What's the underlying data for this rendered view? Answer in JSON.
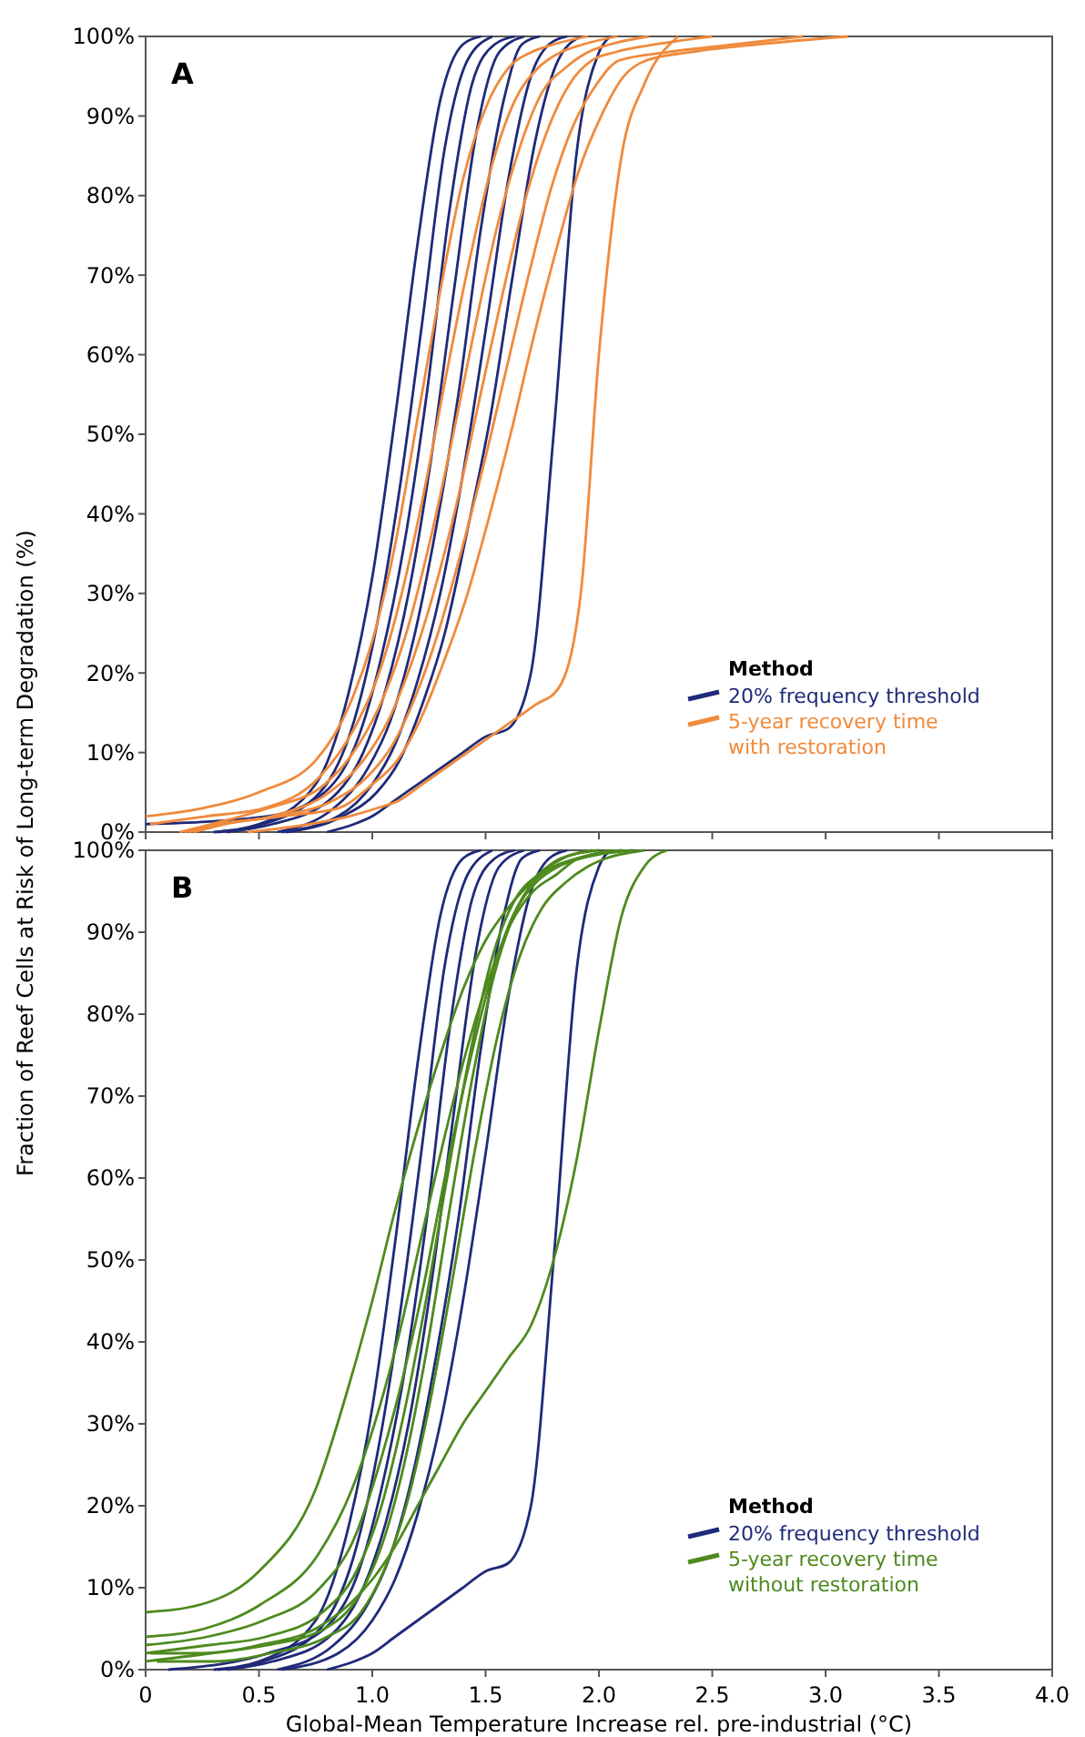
{
  "chart_data": [
    {
      "type": "line",
      "title": "A",
      "ylabel": "Fraction of Reef Cells at Risk of Long-term Degradation (%)",
      "legend_title": "Method",
      "legend": "bottom right",
      "tick_labels": "y",
      "xlim": [
        0,
        4
      ],
      "ylim": [
        0,
        100
      ],
      "xticks": [
        0,
        0.5,
        1,
        1.5,
        2,
        2.5,
        3,
        3.5,
        4
      ],
      "yticks": [
        {
          "value": 0,
          "label": "0%"
        },
        {
          "value": 10,
          "label": "10%"
        },
        {
          "value": 20,
          "label": "20%"
        },
        {
          "value": 30,
          "label": "30%"
        },
        {
          "value": 40,
          "label": "40%"
        },
        {
          "value": 50,
          "label": "50%"
        },
        {
          "value": 60,
          "label": "60%"
        },
        {
          "value": 70,
          "label": "70%"
        },
        {
          "value": 80,
          "label": "80%"
        },
        {
          "value": 90,
          "label": "90%"
        },
        {
          "value": 100,
          "label": "100%"
        }
      ],
      "series": [
        {
          "name": "20% frequency threshold",
          "color": "#1f2a78",
          "x": [
            0.3,
            0.5,
            0.75,
            0.9,
            1.0,
            1.1,
            1.2,
            1.3,
            1.4,
            1.48
          ],
          "values": [
            0,
            1,
            6,
            18,
            32,
            52,
            74,
            92,
            99,
            100
          ]
        },
        {
          "color": "#1f2a78",
          "x": [
            0.32,
            0.52,
            0.77,
            0.92,
            1.02,
            1.12,
            1.22,
            1.32,
            1.42,
            1.53
          ],
          "values": [
            0,
            1,
            5,
            14,
            26,
            43,
            64,
            86,
            97,
            100
          ]
        },
        {
          "color": "#1f2a78",
          "x": [
            0,
            0.54,
            0.79,
            0.94,
            1.04,
            1.14,
            1.24,
            1.34,
            1.44,
            1.54,
            1.63
          ],
          "values": [
            1,
            2,
            5,
            12,
            22,
            36,
            55,
            78,
            94,
            99,
            100
          ]
        },
        {
          "color": "#1f2a78",
          "x": [
            0.36,
            0.56,
            0.81,
            0.96,
            1.06,
            1.16,
            1.26,
            1.36,
            1.46,
            1.56,
            1.67
          ],
          "values": [
            0,
            1,
            4,
            10,
            18,
            30,
            47,
            68,
            88,
            98,
            100
          ]
        },
        {
          "color": "#1f2a78",
          "x": [
            0.58,
            0.83,
            0.98,
            1.08,
            1.18,
            1.28,
            1.38,
            1.48,
            1.58,
            1.66,
            1.74
          ],
          "values": [
            0,
            3,
            8,
            14,
            24,
            38,
            55,
            76,
            92,
            99,
            100
          ]
        },
        {
          "color": "#1f2a78",
          "x": [
            0.6,
            0.85,
            1.0,
            1.1,
            1.2,
            1.3,
            1.4,
            1.5,
            1.6,
            1.7,
            1.78,
            1.86
          ],
          "values": [
            0,
            2,
            6,
            11,
            19,
            30,
            45,
            63,
            82,
            95,
            99,
            100
          ]
        },
        {
          "color": "#1f2a78",
          "x": [
            0.62,
            0.87,
            1.02,
            1.12,
            1.22,
            1.32,
            1.42,
            1.52,
            1.62,
            1.72,
            1.82,
            1.92
          ],
          "values": [
            0,
            2,
            5,
            9,
            16,
            25,
            38,
            52,
            70,
            87,
            97,
            100
          ]
        },
        {
          "color": "#1f2a78",
          "x": [
            0.8,
            0.92,
            1.0,
            1.1,
            1.2,
            1.3,
            1.4,
            1.5,
            1.6,
            1.7,
            1.8,
            1.9,
            2.0,
            2.05
          ],
          "values": [
            0,
            1,
            2,
            4,
            6,
            8,
            10,
            12,
            13,
            20,
            50,
            85,
            98,
            100
          ]
        },
        {
          "name": "5-year recovery time with restoration",
          "color": "#f08a3c",
          "x": [
            0,
            0.25,
            0.5,
            0.75,
            0.9,
            1.0,
            1.1,
            1.2,
            1.3,
            1.4,
            1.5,
            1.6,
            1.7,
            1.8,
            1.95
          ],
          "values": [
            2,
            3,
            5,
            9,
            16,
            24,
            36,
            52,
            68,
            82,
            91,
            96,
            98,
            99,
            100
          ]
        },
        {
          "color": "#f08a3c",
          "x": [
            0.02,
            0.27,
            0.52,
            0.77,
            0.92,
            1.03,
            1.13,
            1.23,
            1.33,
            1.43,
            1.53,
            1.63,
            1.73,
            1.83,
            1.93,
            2.08
          ],
          "values": [
            1,
            2,
            3,
            7,
            13,
            20,
            30,
            43,
            58,
            72,
            84,
            92,
            96,
            98,
            99,
            100
          ]
        },
        {
          "color": "#f08a3c",
          "x": [
            0.15,
            0.29,
            0.54,
            0.79,
            0.94,
            1.05,
            1.15,
            1.25,
            1.35,
            1.45,
            1.55,
            1.65,
            1.75,
            1.85,
            1.95,
            2.05,
            2.22
          ],
          "values": [
            0,
            1,
            3,
            6,
            11,
            17,
            25,
            36,
            49,
            63,
            76,
            86,
            93,
            96,
            98,
            99,
            100
          ]
        },
        {
          "color": "#f08a3c",
          "x": [
            0.17,
            0.31,
            0.56,
            0.81,
            0.96,
            1.07,
            1.17,
            1.27,
            1.37,
            1.47,
            1.57,
            1.67,
            1.77,
            1.87,
            1.97,
            2.07,
            2.25,
            2.5
          ],
          "values": [
            0,
            1,
            2,
            5,
            9,
            14,
            21,
            30,
            41,
            54,
            67,
            79,
            88,
            94,
            97,
            98,
            99,
            100
          ]
        },
        {
          "color": "#f08a3c",
          "x": [
            0.19,
            0.33,
            0.58,
            0.83,
            0.98,
            1.09,
            1.19,
            1.29,
            1.39,
            1.49,
            1.59,
            1.69,
            1.79,
            1.89,
            1.99,
            2.09,
            2.3,
            2.6,
            2.9
          ],
          "values": [
            0,
            1,
            2,
            4,
            7,
            11,
            17,
            25,
            35,
            46,
            58,
            70,
            81,
            89,
            94,
            97,
            98,
            99,
            100
          ]
        },
        {
          "color": "#f08a3c",
          "x": [
            0.21,
            0.35,
            0.6,
            0.85,
            1.0,
            1.11,
            1.21,
            1.31,
            1.41,
            1.51,
            1.61,
            1.71,
            1.81,
            1.91,
            2.01,
            2.11,
            2.21,
            2.4,
            2.7,
            3.1
          ],
          "values": [
            0,
            1,
            2,
            3,
            6,
            9,
            14,
            21,
            29,
            39,
            50,
            62,
            73,
            83,
            90,
            95,
            97,
            98,
            99,
            100
          ]
        },
        {
          "color": "#f08a3c",
          "x": [
            0.45,
            0.72,
            0.9,
            1.02,
            1.12,
            1.22,
            1.32,
            1.42,
            1.52,
            1.62,
            1.72,
            1.82,
            1.92,
            2.0,
            2.1,
            2.2,
            2.35
          ],
          "values": [
            0,
            1,
            2,
            3,
            4,
            6,
            8,
            10,
            12,
            14,
            16,
            18,
            30,
            60,
            85,
            94,
            100
          ]
        }
      ]
    },
    {
      "type": "line",
      "title": "B",
      "xlabel": "Global-Mean Temperature Increase rel. pre-industrial (°C)",
      "legend_title": "Method",
      "legend": "bottom right",
      "xlim": [
        0,
        4
      ],
      "ylim": [
        0,
        100
      ],
      "xticks": [
        0,
        0.5,
        {
          "value": 1,
          "label": "1.0"
        },
        1.5,
        {
          "value": 2,
          "label": "2.0"
        },
        2.5,
        {
          "value": 3,
          "label": "3.0"
        },
        3.5,
        {
          "value": 4,
          "label": "4.0"
        }
      ],
      "yticks": [
        {
          "value": 0,
          "label": "0%"
        },
        {
          "value": 10,
          "label": "10%"
        },
        {
          "value": 20,
          "label": "20%"
        },
        {
          "value": 30,
          "label": "30%"
        },
        {
          "value": 40,
          "label": "40%"
        },
        {
          "value": 50,
          "label": "50%"
        },
        {
          "value": 60,
          "label": "60%"
        },
        {
          "value": 70,
          "label": "70%"
        },
        {
          "value": 80,
          "label": "80%"
        },
        {
          "value": 90,
          "label": "90%"
        },
        {
          "value": 100,
          "label": "100%"
        }
      ],
      "series": [
        {
          "name": "20% frequency threshold",
          "color": "#1f2a78",
          "x": [
            0.3,
            0.5,
            0.75,
            0.9,
            1.0,
            1.1,
            1.2,
            1.3,
            1.4,
            1.48
          ],
          "values": [
            0,
            1,
            6,
            18,
            32,
            52,
            74,
            92,
            99,
            100
          ]
        },
        {
          "color": "#1f2a78",
          "x": [
            0.32,
            0.52,
            0.77,
            0.92,
            1.02,
            1.12,
            1.22,
            1.32,
            1.42,
            1.53
          ],
          "values": [
            0,
            1,
            5,
            14,
            26,
            43,
            64,
            86,
            97,
            100
          ]
        },
        {
          "color": "#1f2a78",
          "x": [
            0.1,
            0.54,
            0.79,
            0.94,
            1.04,
            1.14,
            1.24,
            1.34,
            1.44,
            1.54,
            1.63
          ],
          "values": [
            0,
            2,
            5,
            12,
            22,
            36,
            55,
            78,
            94,
            99,
            100
          ]
        },
        {
          "color": "#1f2a78",
          "x": [
            0.36,
            0.56,
            0.81,
            0.96,
            1.06,
            1.16,
            1.26,
            1.36,
            1.46,
            1.56,
            1.67
          ],
          "values": [
            0,
            1,
            4,
            10,
            18,
            30,
            47,
            68,
            88,
            98,
            100
          ]
        },
        {
          "color": "#1f2a78",
          "x": [
            0.58,
            0.83,
            0.98,
            1.08,
            1.18,
            1.28,
            1.38,
            1.48,
            1.58,
            1.66,
            1.74
          ],
          "values": [
            0,
            3,
            8,
            14,
            24,
            38,
            55,
            76,
            92,
            99,
            100
          ]
        },
        {
          "color": "#1f2a78",
          "x": [
            0.6,
            0.85,
            1.0,
            1.1,
            1.2,
            1.3,
            1.4,
            1.5,
            1.6,
            1.7,
            1.78,
            1.86
          ],
          "values": [
            0,
            2,
            6,
            11,
            19,
            30,
            45,
            63,
            82,
            95,
            99,
            100
          ]
        },
        {
          "color": "#1f2a78",
          "x": [
            0.8,
            0.92,
            1.0,
            1.1,
            1.2,
            1.3,
            1.4,
            1.5,
            1.6,
            1.7,
            1.8,
            1.9,
            2.0,
            2.05
          ],
          "values": [
            0,
            1,
            2,
            4,
            6,
            8,
            10,
            12,
            13,
            20,
            50,
            85,
            98,
            100
          ]
        },
        {
          "name": "5-year recovery time without restoration",
          "color": "#4e8a1e",
          "x": [
            0,
            0.25,
            0.5,
            0.75,
            0.9,
            1.0,
            1.1,
            1.2,
            1.3,
            1.4,
            1.5,
            1.6,
            1.7,
            1.8,
            1.9,
            2.05
          ],
          "values": [
            7,
            8,
            12,
            22,
            35,
            45,
            56,
            66,
            75,
            83,
            89,
            93,
            96,
            98,
            99,
            100
          ]
        },
        {
          "color": "#4e8a1e",
          "x": [
            0,
            0.26,
            0.51,
            0.76,
            0.91,
            1.01,
            1.11,
            1.21,
            1.31,
            1.41,
            1.51,
            1.61,
            1.71,
            1.81,
            1.91,
            2.1
          ],
          "values": [
            4,
            5,
            8,
            14,
            22,
            30,
            40,
            52,
            64,
            75,
            84,
            91,
            95,
            97,
            99,
            100
          ]
        },
        {
          "color": "#4e8a1e",
          "x": [
            0,
            0.27,
            0.52,
            0.77,
            0.92,
            1.02,
            1.12,
            1.22,
            1.32,
            1.42,
            1.52,
            1.62,
            1.72,
            1.82,
            1.92,
            2.15
          ],
          "values": [
            3,
            4,
            6,
            10,
            16,
            24,
            34,
            46,
            60,
            73,
            84,
            92,
            96,
            98,
            99,
            100
          ]
        },
        {
          "color": "#4e8a1e",
          "x": [
            0,
            0.28,
            0.53,
            0.78,
            0.93,
            1.03,
            1.13,
            1.23,
            1.33,
            1.43,
            1.53,
            1.63,
            1.73,
            1.83,
            2.0
          ],
          "values": [
            2,
            3,
            4,
            7,
            12,
            19,
            30,
            44,
            60,
            75,
            87,
            94,
            97,
            99,
            100
          ]
        },
        {
          "color": "#4e8a1e",
          "x": [
            0,
            0.29,
            0.54,
            0.79,
            0.94,
            1.04,
            1.14,
            1.24,
            1.34,
            1.44,
            1.54,
            1.64,
            1.74,
            1.84,
            1.97
          ],
          "values": [
            1,
            2,
            3,
            5,
            9,
            15,
            25,
            39,
            56,
            72,
            85,
            93,
            97,
            99,
            100
          ]
        },
        {
          "color": "#4e8a1e",
          "x": [
            0.05,
            0.3,
            0.55,
            0.8,
            0.95,
            1.05,
            1.15,
            1.25,
            1.35,
            1.45,
            1.55,
            1.65,
            1.75,
            1.85,
            1.95,
            2.03,
            2.2
          ],
          "values": [
            1,
            1,
            2,
            4,
            7,
            12,
            20,
            32,
            47,
            63,
            77,
            87,
            93,
            96,
            98,
            99,
            100
          ]
        },
        {
          "color": "#4e8a1e",
          "x": [
            0.02,
            0.25,
            0.5,
            0.75,
            0.9,
            1.0,
            1.1,
            1.2,
            1.3,
            1.4,
            1.5,
            1.6,
            1.7,
            1.8,
            1.9,
            2.0,
            2.1,
            2.2,
            2.3
          ],
          "values": [
            2,
            2,
            3,
            5,
            8,
            11,
            15,
            20,
            25,
            30,
            34,
            38,
            42,
            50,
            62,
            78,
            92,
            98,
            100
          ]
        }
      ]
    }
  ]
}
